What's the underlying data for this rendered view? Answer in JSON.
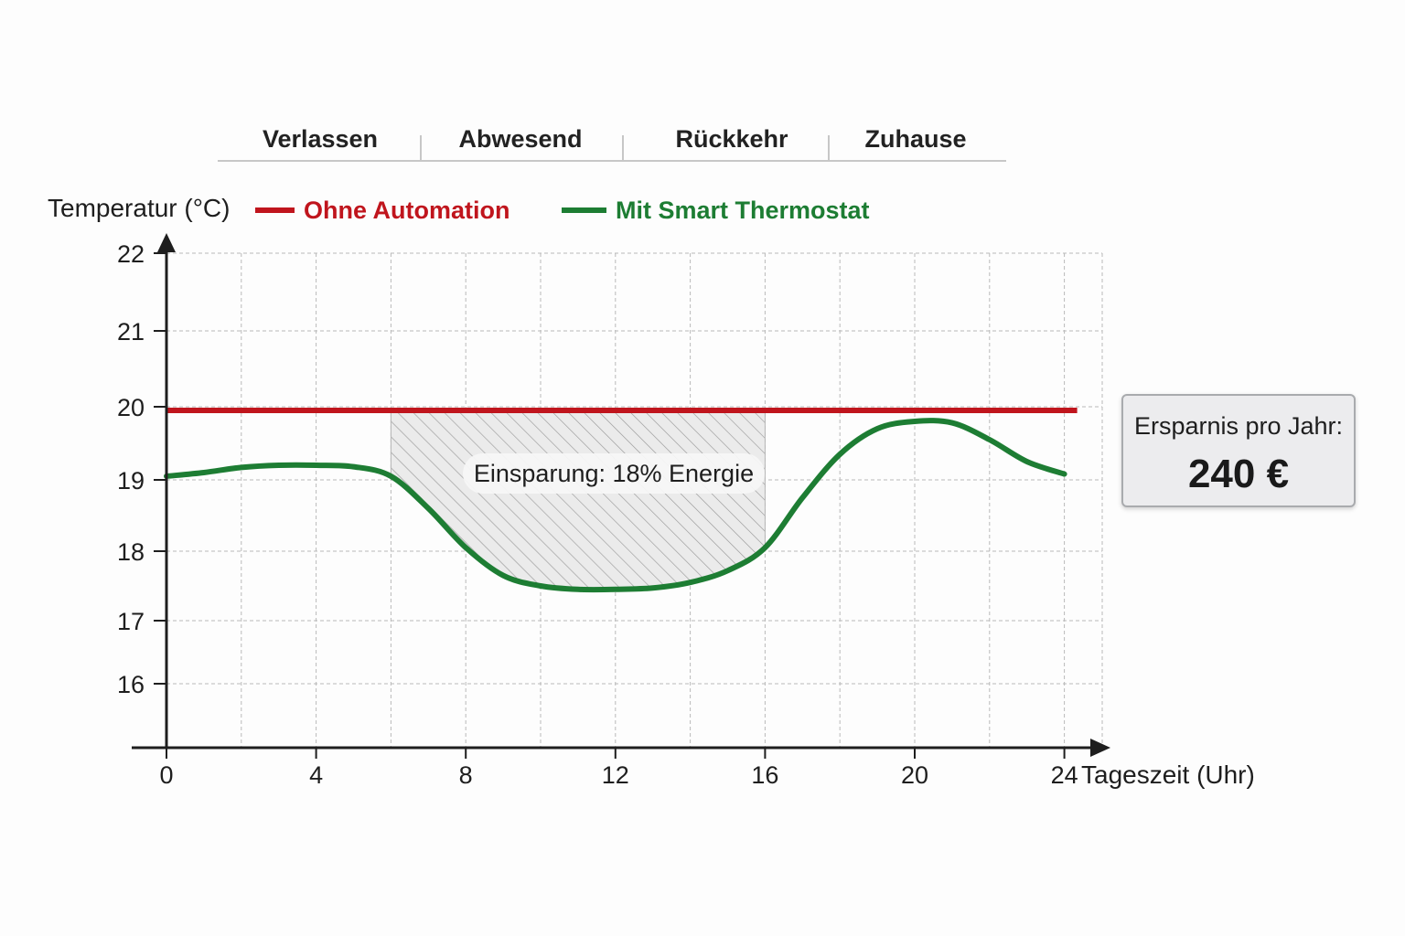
{
  "phases": [
    "Verlassen",
    "Abwesend",
    "Rückkehr",
    "Zuhause"
  ],
  "legend": [
    {
      "label": "Ohne Automation",
      "color": "#c0151d"
    },
    {
      "label": "Mit Smart Thermostat",
      "color": "#1d7d33"
    }
  ],
  "annotation": "Einsparung: 18% Energie",
  "savings_box": {
    "label": "Ersparnis pro Jahr:",
    "value": "240 €"
  },
  "colors": {
    "red": "#c0151d",
    "green": "#1d7d33",
    "axis": "#1e1e1e",
    "hatch": "#9a9a9a"
  },
  "chart_data": {
    "type": "line",
    "xlabel": "Tageszeit (Uhr)",
    "ylabel": "Temperatur (°C)",
    "x_ticks": [
      0,
      4,
      8,
      12,
      16,
      20,
      24
    ],
    "y_ticks": [
      16,
      17,
      18,
      19,
      20,
      21,
      22
    ],
    "xlim": [
      0,
      24
    ],
    "ylim": [
      15.1,
      22
    ],
    "grid": true,
    "legend_position": "top",
    "series": [
      {
        "name": "Ohne Automation",
        "color": "#c0151d",
        "x": [
          0,
          24
        ],
        "y": [
          19.95,
          19.95
        ]
      },
      {
        "name": "Mit Smart Thermostat",
        "color": "#1d7d33",
        "x": [
          0,
          1,
          2,
          3,
          4,
          5,
          6,
          7,
          8,
          9,
          10,
          11,
          12,
          13,
          14,
          15,
          16,
          17,
          18,
          19,
          20,
          21,
          22,
          23,
          24
        ],
        "y": [
          19.05,
          19.1,
          19.17,
          19.2,
          19.2,
          19.18,
          19.05,
          18.6,
          18.05,
          17.65,
          17.5,
          17.45,
          17.45,
          17.47,
          17.55,
          17.72,
          18.05,
          18.75,
          19.35,
          19.7,
          19.8,
          19.78,
          19.55,
          19.25,
          19.08
        ]
      }
    ],
    "shaded_region": {
      "x": [
        6,
        16
      ],
      "label": "Einsparung: 18% Energie"
    }
  }
}
